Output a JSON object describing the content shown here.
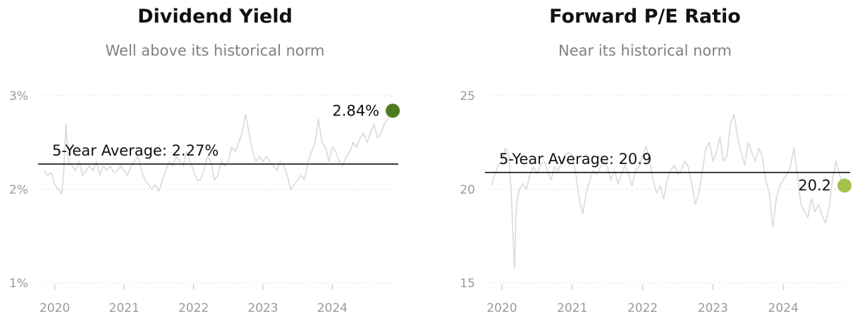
{
  "chart_data": [
    {
      "type": "line",
      "title": "Dividend Yield",
      "subtitle": "Well above its historical norm",
      "x_ticks": [
        "2020",
        "2021",
        "2022",
        "2023",
        "2024"
      ],
      "y_ticks": [
        {
          "value": 1,
          "label": "1%"
        },
        {
          "value": 2,
          "label": "2%"
        },
        {
          "value": 3,
          "label": "3%"
        }
      ],
      "ylim": [
        1,
        3
      ],
      "xlim": [
        2019.8,
        2024.95
      ],
      "grid": true,
      "average": {
        "value": 2.27,
        "label": "5-Year Average: 2.27%"
      },
      "last": {
        "value": 2.84,
        "label": "2.84%",
        "color": "#4f7a1f"
      },
      "line_color": "#d9d9d9",
      "series": [
        {
          "x": [
            2019.85,
            2019.9,
            2019.95,
            2020.0,
            2020.05,
            2020.1,
            2020.13,
            2020.16,
            2020.2,
            2020.25,
            2020.3,
            2020.35,
            2020.4,
            2020.45,
            2020.5,
            2020.55,
            2020.6,
            2020.65,
            2020.7,
            2020.75,
            2020.8,
            2020.85,
            2020.9,
            2020.95,
            2021.0,
            2021.05,
            2021.1,
            2021.15,
            2021.2,
            2021.25,
            2021.3,
            2021.35,
            2021.4,
            2021.45,
            2021.5,
            2021.55,
            2021.6,
            2021.65,
            2021.7,
            2021.75,
            2021.8,
            2021.85,
            2021.9,
            2021.95,
            2022.0,
            2022.05,
            2022.1,
            2022.15,
            2022.2,
            2022.25,
            2022.3,
            2022.35,
            2022.4,
            2022.45,
            2022.5,
            2022.55,
            2022.6,
            2022.65,
            2022.7,
            2022.75,
            2022.8,
            2022.85,
            2022.9,
            2022.95,
            2023.0,
            2023.05,
            2023.1,
            2023.15,
            2023.2,
            2023.25,
            2023.3,
            2023.35,
            2023.4,
            2023.45,
            2023.5,
            2023.55,
            2023.6,
            2023.65,
            2023.7,
            2023.75,
            2023.8,
            2023.85,
            2023.9,
            2023.95,
            2024.0,
            2024.05,
            2024.1,
            2024.15,
            2024.2,
            2024.25,
            2024.3,
            2024.35,
            2024.4,
            2024.45,
            2024.5,
            2024.55,
            2024.6,
            2024.65,
            2024.7,
            2024.75,
            2024.8,
            2024.85
          ],
          "y": [
            2.2,
            2.15,
            2.18,
            2.05,
            2.0,
            1.95,
            2.2,
            2.7,
            2.3,
            2.25,
            2.2,
            2.3,
            2.15,
            2.2,
            2.25,
            2.2,
            2.3,
            2.15,
            2.25,
            2.2,
            2.25,
            2.18,
            2.2,
            2.25,
            2.2,
            2.15,
            2.25,
            2.3,
            2.35,
            2.2,
            2.1,
            2.05,
            2.0,
            2.05,
            1.98,
            2.1,
            2.2,
            2.3,
            2.25,
            2.35,
            2.3,
            2.25,
            2.4,
            2.3,
            2.2,
            2.1,
            2.1,
            2.2,
            2.35,
            2.3,
            2.1,
            2.15,
            2.3,
            2.25,
            2.3,
            2.45,
            2.4,
            2.5,
            2.6,
            2.8,
            2.6,
            2.4,
            2.3,
            2.35,
            2.3,
            2.35,
            2.3,
            2.25,
            2.2,
            2.3,
            2.25,
            2.15,
            2.0,
            2.05,
            2.1,
            2.15,
            2.1,
            2.3,
            2.4,
            2.5,
            2.75,
            2.5,
            2.45,
            2.3,
            2.45,
            2.4,
            2.3,
            2.25,
            2.35,
            2.4,
            2.5,
            2.45,
            2.55,
            2.6,
            2.5,
            2.6,
            2.7,
            2.55,
            2.6,
            2.7,
            2.75,
            2.84
          ]
        }
      ]
    },
    {
      "type": "line",
      "title": "Forward P/E Ratio",
      "subtitle": "Near its historical norm",
      "x_ticks": [
        "2020",
        "2021",
        "2022",
        "2023",
        "2024"
      ],
      "y_ticks": [
        {
          "value": 15,
          "label": "15"
        },
        {
          "value": 20,
          "label": "20"
        },
        {
          "value": 25,
          "label": "25"
        }
      ],
      "ylim": [
        15,
        25
      ],
      "xlim": [
        2019.8,
        2024.95
      ],
      "grid": true,
      "average": {
        "value": 20.9,
        "label": "5-Year Average: 20.9"
      },
      "last": {
        "value": 20.2,
        "label": "20.2",
        "color": "#a3c14b"
      },
      "line_color": "#d9d9d9",
      "series": [
        {
          "x": [
            2019.85,
            2019.9,
            2019.95,
            2020.0,
            2020.05,
            2020.1,
            2020.13,
            2020.16,
            2020.18,
            2020.2,
            2020.22,
            2020.25,
            2020.3,
            2020.35,
            2020.4,
            2020.45,
            2020.5,
            2020.55,
            2020.6,
            2020.65,
            2020.7,
            2020.75,
            2020.8,
            2020.85,
            2020.9,
            2020.95,
            2021.0,
            2021.05,
            2021.1,
            2021.15,
            2021.2,
            2021.25,
            2021.3,
            2021.35,
            2021.4,
            2021.45,
            2021.5,
            2021.55,
            2021.6,
            2021.65,
            2021.7,
            2021.75,
            2021.8,
            2021.85,
            2021.9,
            2021.95,
            2022.0,
            2022.05,
            2022.1,
            2022.15,
            2022.2,
            2022.25,
            2022.3,
            2022.35,
            2022.4,
            2022.45,
            2022.5,
            2022.55,
            2022.6,
            2022.65,
            2022.7,
            2022.75,
            2022.8,
            2022.85,
            2022.9,
            2022.95,
            2023.0,
            2023.05,
            2023.1,
            2023.15,
            2023.2,
            2023.25,
            2023.3,
            2023.35,
            2023.4,
            2023.45,
            2023.5,
            2023.55,
            2023.6,
            2023.65,
            2023.7,
            2023.75,
            2023.8,
            2023.85,
            2023.9,
            2023.95,
            2024.0,
            2024.05,
            2024.1,
            2024.15,
            2024.2,
            2024.25,
            2024.3,
            2024.35,
            2024.4,
            2024.45,
            2024.5,
            2024.55,
            2024.6,
            2024.65,
            2024.7,
            2024.75,
            2024.8,
            2024.85
          ],
          "y": [
            20.2,
            20.8,
            21.3,
            21.5,
            22.2,
            21.8,
            20.0,
            17.5,
            15.8,
            18.5,
            19.5,
            20.0,
            20.3,
            20.0,
            20.8,
            21.2,
            20.8,
            21.3,
            21.5,
            21.0,
            20.5,
            21.2,
            21.0,
            21.5,
            21.8,
            22.0,
            21.8,
            20.8,
            19.5,
            18.7,
            19.8,
            20.5,
            21.0,
            20.8,
            21.2,
            21.5,
            21.2,
            20.5,
            21.0,
            20.3,
            20.8,
            21.3,
            20.8,
            20.2,
            21.0,
            21.2,
            21.8,
            22.3,
            21.5,
            20.5,
            19.8,
            20.2,
            19.5,
            20.5,
            21.0,
            21.3,
            20.8,
            21.0,
            21.5,
            21.2,
            20.3,
            19.2,
            19.8,
            21.0,
            22.2,
            22.5,
            21.5,
            22.0,
            22.8,
            21.5,
            21.8,
            23.5,
            24.0,
            22.8,
            22.0,
            21.3,
            22.5,
            22.0,
            21.5,
            22.2,
            21.8,
            20.5,
            19.8,
            18.0,
            19.5,
            20.2,
            20.5,
            20.8,
            21.2,
            22.2,
            20.8,
            19.2,
            18.8,
            18.5,
            19.5,
            18.8,
            19.2,
            18.6,
            18.2,
            19.0,
            20.5,
            21.5,
            20.8,
            20.2
          ]
        }
      ]
    }
  ]
}
